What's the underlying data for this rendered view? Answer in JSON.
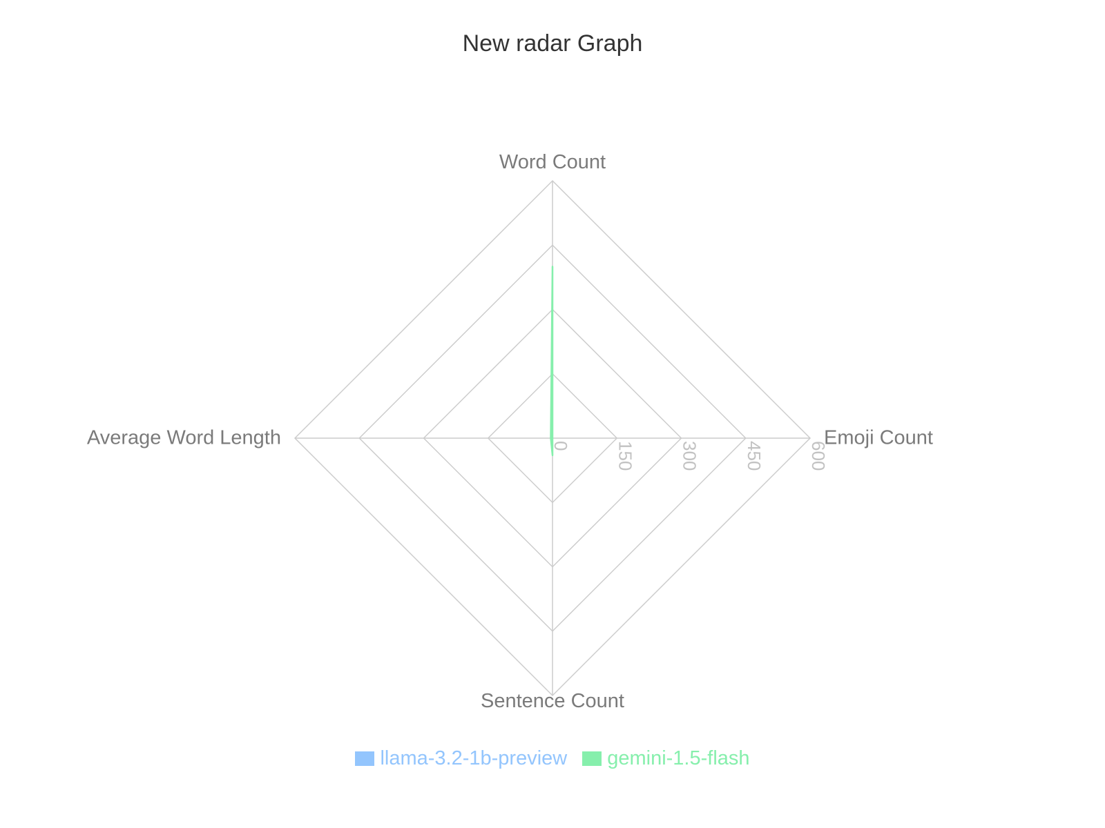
{
  "chart_data": {
    "type": "radar",
    "title": "New radar Graph",
    "axes": [
      "Word Count",
      "Emoji Count",
      "Sentence Count",
      "Average Word Length"
    ],
    "r_ticks": [
      "0",
      "150",
      "300",
      "450",
      "600"
    ],
    "r_range": [
      0,
      600
    ],
    "grid": true,
    "legend_position": "bottom",
    "series": [
      {
        "name": "llama-3.2-1b-preview",
        "color": "#93c5fd",
        "values": [
          0,
          0,
          0,
          0
        ]
      },
      {
        "name": "gemini-1.5-flash",
        "color": "#86efac",
        "values": [
          400,
          0,
          40,
          4
        ]
      }
    ]
  }
}
